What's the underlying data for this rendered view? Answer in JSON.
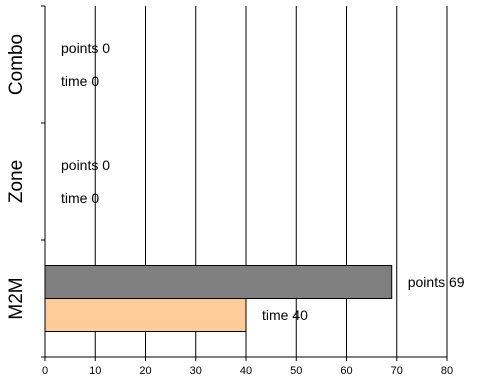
{
  "chart_data": {
    "type": "bar",
    "orientation": "horizontal",
    "categories": [
      "Combo",
      "Zone",
      "M2M"
    ],
    "series": [
      {
        "name": "points",
        "values": [
          0,
          0,
          69
        ],
        "color": "#808080"
      },
      {
        "name": "time",
        "values": [
          0,
          0,
          40
        ],
        "color": "#ffcc99"
      }
    ],
    "data_labels": [
      [
        "points 0",
        "time 0"
      ],
      [
        "points 0",
        "time 0"
      ],
      [
        "points 69",
        "time 40"
      ]
    ],
    "xlim": [
      0,
      80
    ],
    "x_ticks": [
      "0",
      "10",
      "20",
      "30",
      "40",
      "50",
      "60",
      "70",
      "80"
    ],
    "grid": "vertical",
    "legend": "none",
    "title": "",
    "xlabel": "",
    "ylabel": ""
  }
}
